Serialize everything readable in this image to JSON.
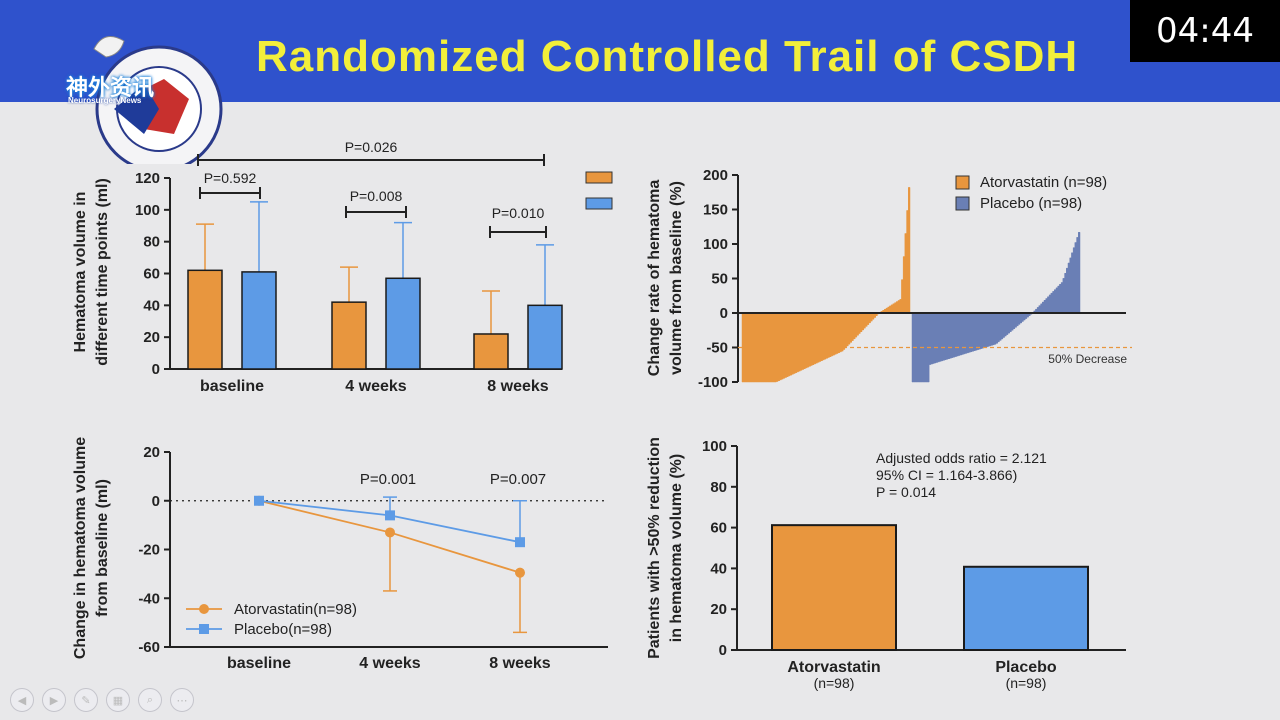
{
  "slide": {
    "title": "Randomized Controlled Trail of CSDH",
    "timer": "04:44",
    "logo_text": "神外资讯",
    "logo_subtext": "NeurosurgeryNews"
  },
  "colors": {
    "orange": "#e8963e",
    "blue": "#5d9be6",
    "slate": "#6a7fb5",
    "header": "#2f52cc",
    "title": "#f2ef3a"
  },
  "toolbar": {
    "icons": [
      "prev-icon",
      "play-icon",
      "pen-icon",
      "slides-icon",
      "zoom-icon",
      "more-icon"
    ]
  },
  "chart_data": [
    {
      "id": "top-left",
      "type": "bar",
      "ylabel": "Hematoma volume in different time points (ml)",
      "ylim": [
        0,
        120
      ],
      "yticks": [
        0,
        20,
        40,
        60,
        80,
        100,
        120
      ],
      "categories": [
        "baseline",
        "4 weeks",
        "8 weeks"
      ],
      "series": [
        {
          "values": [
            62,
            42,
            22
          ],
          "sd": [
            29,
            22,
            27
          ],
          "color": "#e8963e"
        },
        {
          "values": [
            61,
            57,
            40
          ],
          "sd": [
            44,
            35,
            38
          ],
          "color": "#5d9be6"
        }
      ],
      "legend": "top-right",
      "annotations": [
        "P=0.592",
        "P=0.008",
        "P=0.010",
        "P=0.026"
      ]
    },
    {
      "id": "top-right",
      "type": "area",
      "ylabel": "Change rate of hematoma volume from baseline (%)",
      "ylim": [
        -100,
        200
      ],
      "yticks": [
        -100,
        -50,
        0,
        50,
        100,
        150,
        200
      ],
      "series": [
        {
          "name": "Atorvastatin (n=98)",
          "color": "#e8963e",
          "n": 98,
          "min": -100,
          "max": 182
        },
        {
          "name": "Placebo (n=98)",
          "color": "#6a7fb5",
          "n": 98,
          "min": -100,
          "max": 117
        }
      ],
      "reference_line": {
        "y": -50,
        "label": "50% Decrease"
      },
      "legend": "top-right"
    },
    {
      "id": "bottom-left",
      "type": "line",
      "ylabel": "Change in hematoma volume from baseline (ml)",
      "ylim": [
        -60,
        20
      ],
      "yticks": [
        -60,
        -40,
        -20,
        0,
        20
      ],
      "categories": [
        "baseline",
        "4 weeks",
        "8 weeks"
      ],
      "series": [
        {
          "name": "Atorvastatin(n=98)",
          "values": [
            0,
            -13,
            -29.5
          ],
          "err_lower": [
            0,
            -37,
            -54
          ],
          "color": "#e8963e",
          "marker": "circle"
        },
        {
          "name": "Placebo(n=98)",
          "values": [
            0,
            -6,
            -17
          ],
          "err_upper": [
            0,
            1.5,
            0
          ],
          "color": "#5d9be6",
          "marker": "square"
        }
      ],
      "annotations": [
        "P=0.001",
        "P=0.007"
      ],
      "legend": "bottom-left"
    },
    {
      "id": "bottom-right",
      "type": "bar",
      "ylabel": "Patients with >50% reduction in hematoma volume (%)",
      "ylim": [
        0,
        100
      ],
      "yticks": [
        0,
        20,
        40,
        60,
        80,
        100
      ],
      "categories": [
        "Atorvastatin",
        "Placebo"
      ],
      "subcategories": [
        "(n=98)",
        "(n=98)"
      ],
      "values": [
        61.2,
        40.8
      ],
      "colors": [
        "#e8963e",
        "#5d9be6"
      ],
      "annotations": [
        "Adjusted odds ratio = 2.121",
        "95% CI = 1.164-3.866)",
        "P = 0.014"
      ]
    }
  ]
}
